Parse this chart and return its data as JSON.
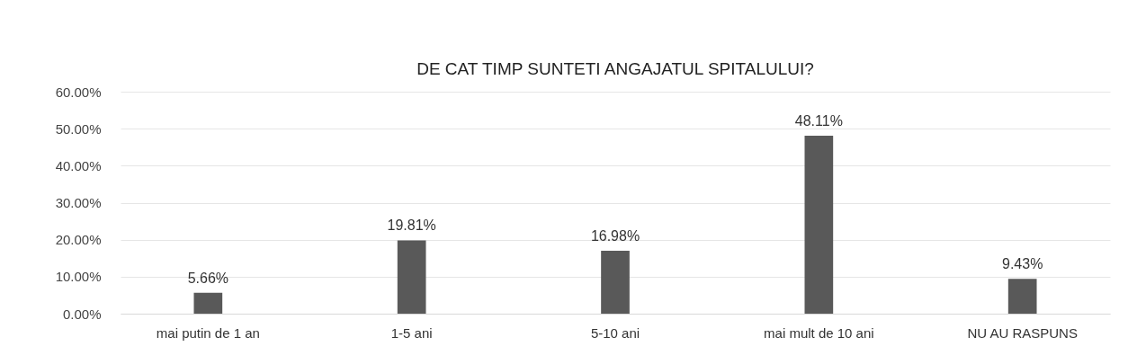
{
  "chart_data": {
    "type": "bar",
    "title": "DE CAT TIMP SUNTETI ANGAJATUL SPITALULUI?",
    "categories": [
      "mai putin de 1 an",
      "1-5 ani",
      "5-10 ani",
      "mai mult de 10 ani",
      "NU AU RASPUNS"
    ],
    "values": [
      5.66,
      19.81,
      16.98,
      48.11,
      9.43
    ],
    "value_labels": [
      "5.66%",
      "19.81%",
      "16.98%",
      "48.11%",
      "9.43%"
    ],
    "color": "#595959",
    "ylim": [
      0,
      60
    ],
    "yticks": [
      {
        "value": 0,
        "label": "0.00%"
      },
      {
        "value": 10,
        "label": "10.00%"
      },
      {
        "value": 20,
        "label": "20.00%"
      },
      {
        "value": 30,
        "label": "30.00%"
      },
      {
        "value": 40,
        "label": "40.00%"
      },
      {
        "value": 50,
        "label": "50.00%"
      },
      {
        "value": 60,
        "label": "60.00%"
      }
    ],
    "grid": "y"
  }
}
